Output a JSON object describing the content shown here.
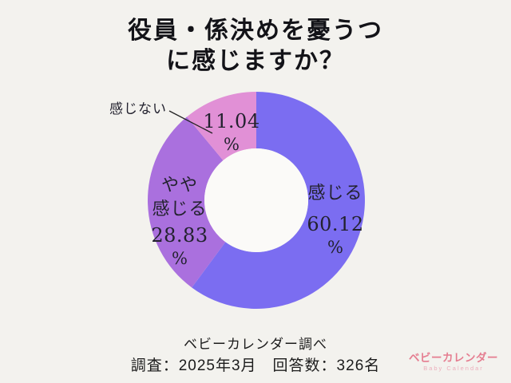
{
  "title": {
    "line1": "役員・係決めを憂うつ",
    "line2": "に感じますか？"
  },
  "chart_data": {
    "type": "pie",
    "subtype": "donut",
    "direction": "clockwise",
    "start_angle_deg": 0,
    "unit": "%",
    "categories": [
      "感じる",
      "やや感じる",
      "感じない"
    ],
    "values": [
      60.12,
      28.83,
      11.04
    ],
    "colors": [
      "#7b6df1",
      "#aa70de",
      "#e190d6"
    ],
    "hole_color": "#fbfaf8",
    "background_color": "#f3f2ee",
    "slices": [
      {
        "label": "感じる",
        "value": 60.12,
        "value_text": "60.12",
        "color": "#7b6df1",
        "label_position": "inside-right"
      },
      {
        "label": "やや感じる",
        "label_line1": "やや",
        "label_line2": "感じる",
        "value": 28.83,
        "value_text": "28.83",
        "color": "#aa70de",
        "label_position": "inside-left"
      },
      {
        "label": "感じない",
        "value": 11.04,
        "value_text": "11.04",
        "color": "#e190d6",
        "label_position": "callout-top-left"
      }
    ]
  },
  "captions": {
    "source": "ベビーカレンダー調べ",
    "survey": "調査：2025年3月　回答数：326名"
  },
  "logo": {
    "name": "ベビーカレンダー",
    "subtitle": "Baby Calendar",
    "name_color": "#e57d90",
    "subtitle_color": "#ecafbc"
  }
}
